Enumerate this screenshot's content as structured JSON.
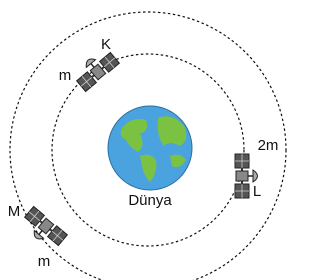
{
  "earth": {
    "label": "Dünya"
  },
  "satellites": [
    {
      "name": "K",
      "mass": "m"
    },
    {
      "name": "L",
      "mass": "2m"
    },
    {
      "name": "M",
      "mass": "m"
    }
  ]
}
